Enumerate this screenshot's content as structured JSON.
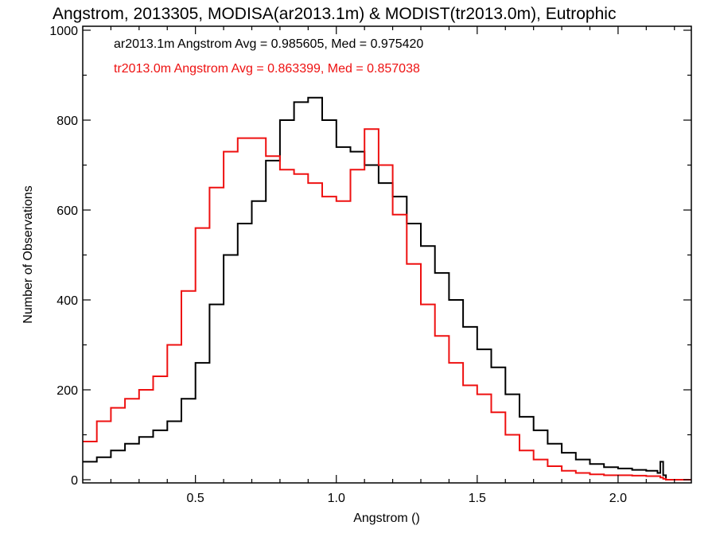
{
  "chart_data": {
    "type": "line",
    "title": "Angstrom, 2013305, MODISA(ar2013.1m) & MODIST(tr2013.0m), Eutrophic",
    "xlabel": "Angstrom ()",
    "ylabel": "Number of Observations",
    "xlim": [
      0.1,
      2.26
    ],
    "ylim": [
      0,
      1000
    ],
    "xticks": [
      {
        "value": 0.5,
        "label": "0.5"
      },
      {
        "value": 1.0,
        "label": "1.0"
      },
      {
        "value": 1.5,
        "label": "1.5"
      },
      {
        "value": 2.0,
        "label": "2.0"
      }
    ],
    "yticks": [
      {
        "value": 0,
        "label": "0"
      },
      {
        "value": 200,
        "label": "200"
      },
      {
        "value": 400,
        "label": "400"
      },
      {
        "value": 600,
        "label": "600"
      },
      {
        "value": 800,
        "label": "800"
      },
      {
        "value": 1000,
        "label": "1000"
      }
    ],
    "grid": false,
    "step": true,
    "annotations": [
      {
        "text": "ar2013.1m Angstrom Avg = 0.985605, Med = 0.975420",
        "color": "#000000"
      },
      {
        "text": "tr2013.0m Angstrom Avg = 0.863399, Med = 0.857038",
        "color": "#ee1111"
      }
    ],
    "series": [
      {
        "color": "#000000",
        "x": [
          0.1,
          0.15,
          0.2,
          0.25,
          0.3,
          0.35,
          0.4,
          0.45,
          0.5,
          0.55,
          0.6,
          0.65,
          0.7,
          0.75,
          0.8,
          0.85,
          0.9,
          0.95,
          1.0,
          1.05,
          1.1,
          1.15,
          1.2,
          1.25,
          1.3,
          1.35,
          1.4,
          1.45,
          1.5,
          1.55,
          1.6,
          1.65,
          1.7,
          1.75,
          1.8,
          1.85,
          1.9,
          1.95,
          2.0,
          2.05,
          2.1,
          2.14,
          2.15,
          2.16,
          2.17,
          2.2,
          2.26
        ],
        "y": [
          40,
          50,
          65,
          80,
          95,
          110,
          130,
          180,
          260,
          390,
          500,
          570,
          620,
          710,
          800,
          840,
          850,
          800,
          740,
          730,
          700,
          660,
          630,
          570,
          520,
          460,
          400,
          340,
          290,
          250,
          190,
          140,
          110,
          80,
          60,
          45,
          35,
          28,
          25,
          22,
          20,
          15,
          40,
          10,
          0,
          0,
          0
        ]
      },
      {
        "color": "#ee1111",
        "x": [
          0.1,
          0.15,
          0.2,
          0.25,
          0.3,
          0.35,
          0.4,
          0.45,
          0.5,
          0.55,
          0.6,
          0.65,
          0.7,
          0.75,
          0.8,
          0.85,
          0.9,
          0.95,
          1.0,
          1.05,
          1.1,
          1.15,
          1.2,
          1.25,
          1.3,
          1.35,
          1.4,
          1.45,
          1.5,
          1.55,
          1.6,
          1.65,
          1.7,
          1.75,
          1.8,
          1.85,
          1.9,
          1.95,
          2.0,
          2.05,
          2.1,
          2.15,
          2.16,
          2.17,
          2.2,
          2.26
        ],
        "y": [
          85,
          130,
          160,
          180,
          200,
          230,
          300,
          420,
          560,
          650,
          730,
          760,
          760,
          720,
          690,
          680,
          660,
          630,
          620,
          690,
          780,
          700,
          590,
          480,
          390,
          320,
          260,
          210,
          190,
          150,
          100,
          65,
          45,
          30,
          20,
          15,
          12,
          10,
          10,
          9,
          8,
          5,
          2,
          0,
          0,
          0
        ]
      }
    ]
  }
}
